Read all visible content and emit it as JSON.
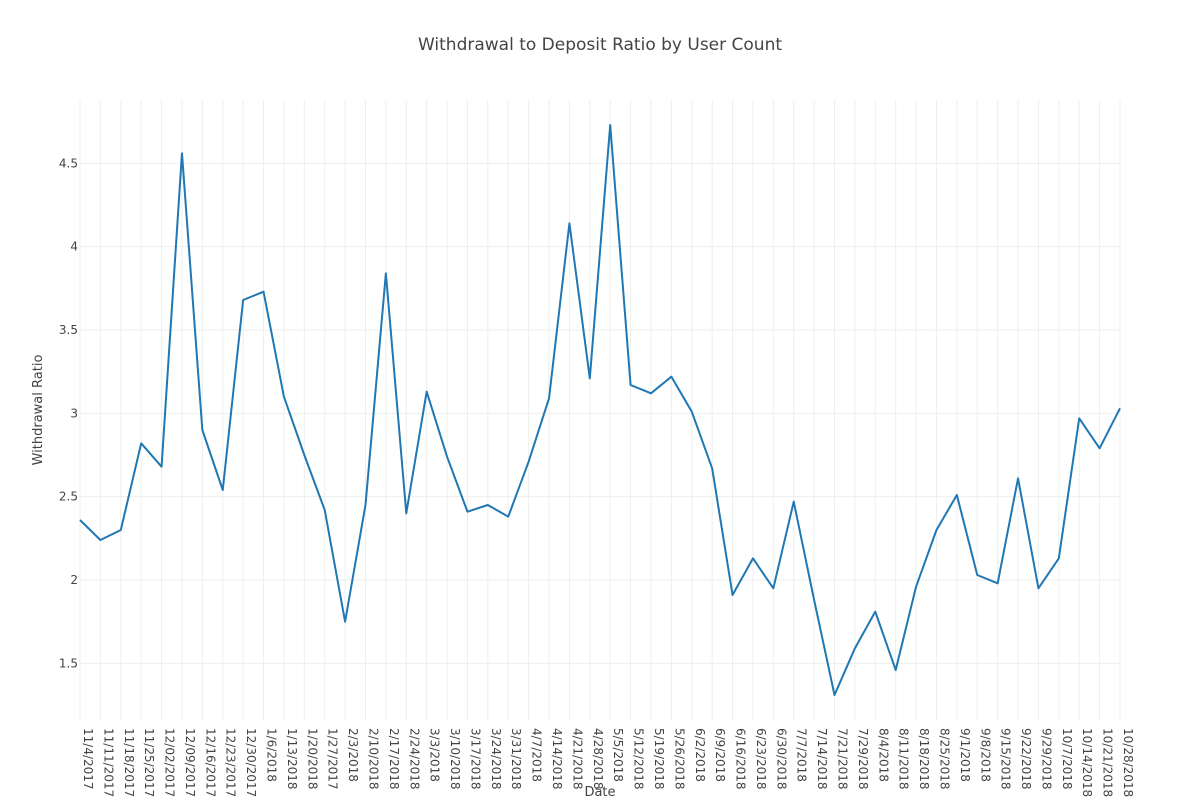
{
  "chart_data": {
    "type": "line",
    "title": "Withdrawal to Deposit Ratio by User Count",
    "xlabel": "Date",
    "ylabel": "Withdrawal Ratio",
    "line_color": "#1f77b4",
    "ylim": [
      1.16,
      4.88
    ],
    "yticks": [
      1.5,
      2,
      2.5,
      3,
      3.5,
      4,
      4.5
    ],
    "ytick_labels": [
      "1.5",
      "2",
      "2.5",
      "3",
      "3.5",
      "4",
      "4.5"
    ],
    "grid": true,
    "categories": [
      "11/4/2017",
      "11/11/2017",
      "11/18/2017",
      "11/25/2017",
      "12/02/2017",
      "12/09/2017",
      "12/16/2017",
      "12/23/2017",
      "12/30/2017",
      "1/6/2018",
      "1/13/2018",
      "1/20/2018",
      "1/27/2017",
      "2/3/2018",
      "2/10/2018",
      "2/17/2018",
      "2/24/2018",
      "3/3/2018",
      "3/10/2018",
      "3/17/2018",
      "3/24/2018",
      "3/31/2018",
      "4/7/2018",
      "4/14/2018",
      "4/21/2018",
      "4/28/2018",
      "5/5/2018",
      "5/12/2018",
      "5/19/2018",
      "5/26/2018",
      "6/2/2018",
      "6/9/2018",
      "6/16/2018",
      "6/23/2018",
      "6/30/2018",
      "7/7/2018",
      "7/14/2018",
      "7/21/2018",
      "7/29/2018",
      "8/4/2018",
      "8/11/2018",
      "8/18/2018",
      "8/25/2018",
      "9/1/2018",
      "9/8/2018",
      "9/15/2018",
      "9/22/2018",
      "9/29/2018",
      "10/7/2018",
      "10/14/2018",
      "10/21/2018",
      "10/28/2018"
    ],
    "values": [
      2.36,
      2.24,
      2.3,
      2.82,
      2.68,
      4.56,
      2.9,
      2.54,
      3.68,
      3.73,
      3.1,
      2.75,
      2.42,
      1.75,
      2.45,
      3.84,
      2.4,
      3.13,
      2.74,
      2.41,
      2.45,
      2.38,
      2.71,
      3.09,
      4.14,
      3.21,
      4.73,
      3.17,
      3.12,
      3.22,
      3.01,
      2.67,
      1.91,
      2.13,
      1.95,
      2.47,
      1.88,
      1.31,
      1.59,
      1.81,
      1.46,
      1.96,
      2.3,
      2.51,
      2.03,
      1.98,
      2.61,
      1.95,
      2.13,
      2.97,
      2.79,
      3.03
    ]
  }
}
